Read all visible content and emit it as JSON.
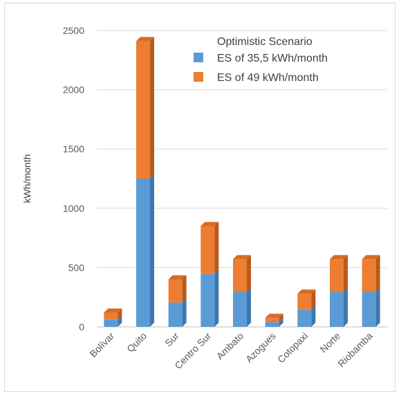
{
  "chart_data": {
    "type": "bar",
    "stacked": true,
    "title": "",
    "xlabel": "",
    "ylabel": "kWh/month",
    "ylim": [
      0,
      2500
    ],
    "yticks": [
      0,
      500,
      1000,
      1500,
      2000,
      2500
    ],
    "grid": true,
    "legend_title": "Optimistic Scenario",
    "legend_position": "top-right",
    "categories": [
      "Bolívar",
      "Quito",
      "Sur",
      "Centro Sur",
      "Ambato",
      "Azogues",
      "Cotopaxi",
      "Norte",
      "Riobamba"
    ],
    "series": [
      {
        "name": "ES of 35,5 kWh/month",
        "color": "#5b9bd5",
        "values": [
          60,
          1250,
          205,
          445,
          295,
          40,
          145,
          295,
          295
        ]
      },
      {
        "name": "ES of 49 kWh/month",
        "color": "#ed7d31",
        "values": [
          60,
          1160,
          195,
          405,
          275,
          35,
          135,
          275,
          275
        ]
      }
    ]
  }
}
